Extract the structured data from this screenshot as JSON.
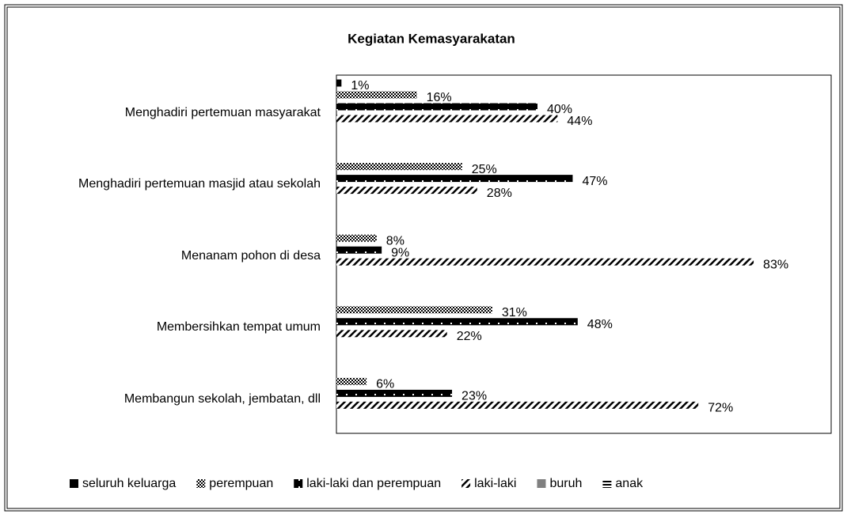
{
  "chart_data": {
    "type": "bar",
    "orientation": "horizontal",
    "title": "Kegiatan Kemasyarakatan",
    "categories": [
      "Menghadiri pertemuan masyarakat",
      "Menghadiri pertemuan masjid atau sekolah",
      "Menanam pohon di desa",
      "Membersihkan tempat umum",
      "Membangun sekolah, jembatan, dll"
    ],
    "xlim": [
      0,
      100
    ],
    "legend": "bottom",
    "series": [
      {
        "name": "seluruh keluarga",
        "color": "#000000",
        "values": [
          1,
          null,
          null,
          null,
          null
        ],
        "value_labels": [
          "1%",
          null,
          null,
          null,
          null
        ]
      },
      {
        "name": "perempuan",
        "color": "#888888",
        "values": [
          16,
          25,
          8,
          31,
          6
        ],
        "value_labels": [
          "16%",
          "25%",
          "8%",
          "31%",
          "6%"
        ]
      },
      {
        "name": "laki-laki dan perempuan",
        "color": "#111111",
        "values": [
          40,
          47,
          9,
          48,
          23
        ],
        "value_labels": [
          "40%",
          "47%",
          "9%",
          "48%",
          "23%"
        ]
      },
      {
        "name": "laki-laki",
        "color": "#222222",
        "values": [
          44,
          28,
          83,
          22,
          72
        ],
        "value_labels": [
          "44%",
          "28%",
          "83%",
          "22%",
          "72%"
        ]
      },
      {
        "name": "buruh",
        "color": "#808080",
        "values": [
          null,
          null,
          null,
          null,
          null
        ]
      },
      {
        "name": "anak",
        "color": "#000000",
        "values": [
          null,
          null,
          null,
          null,
          null
        ]
      }
    ]
  }
}
